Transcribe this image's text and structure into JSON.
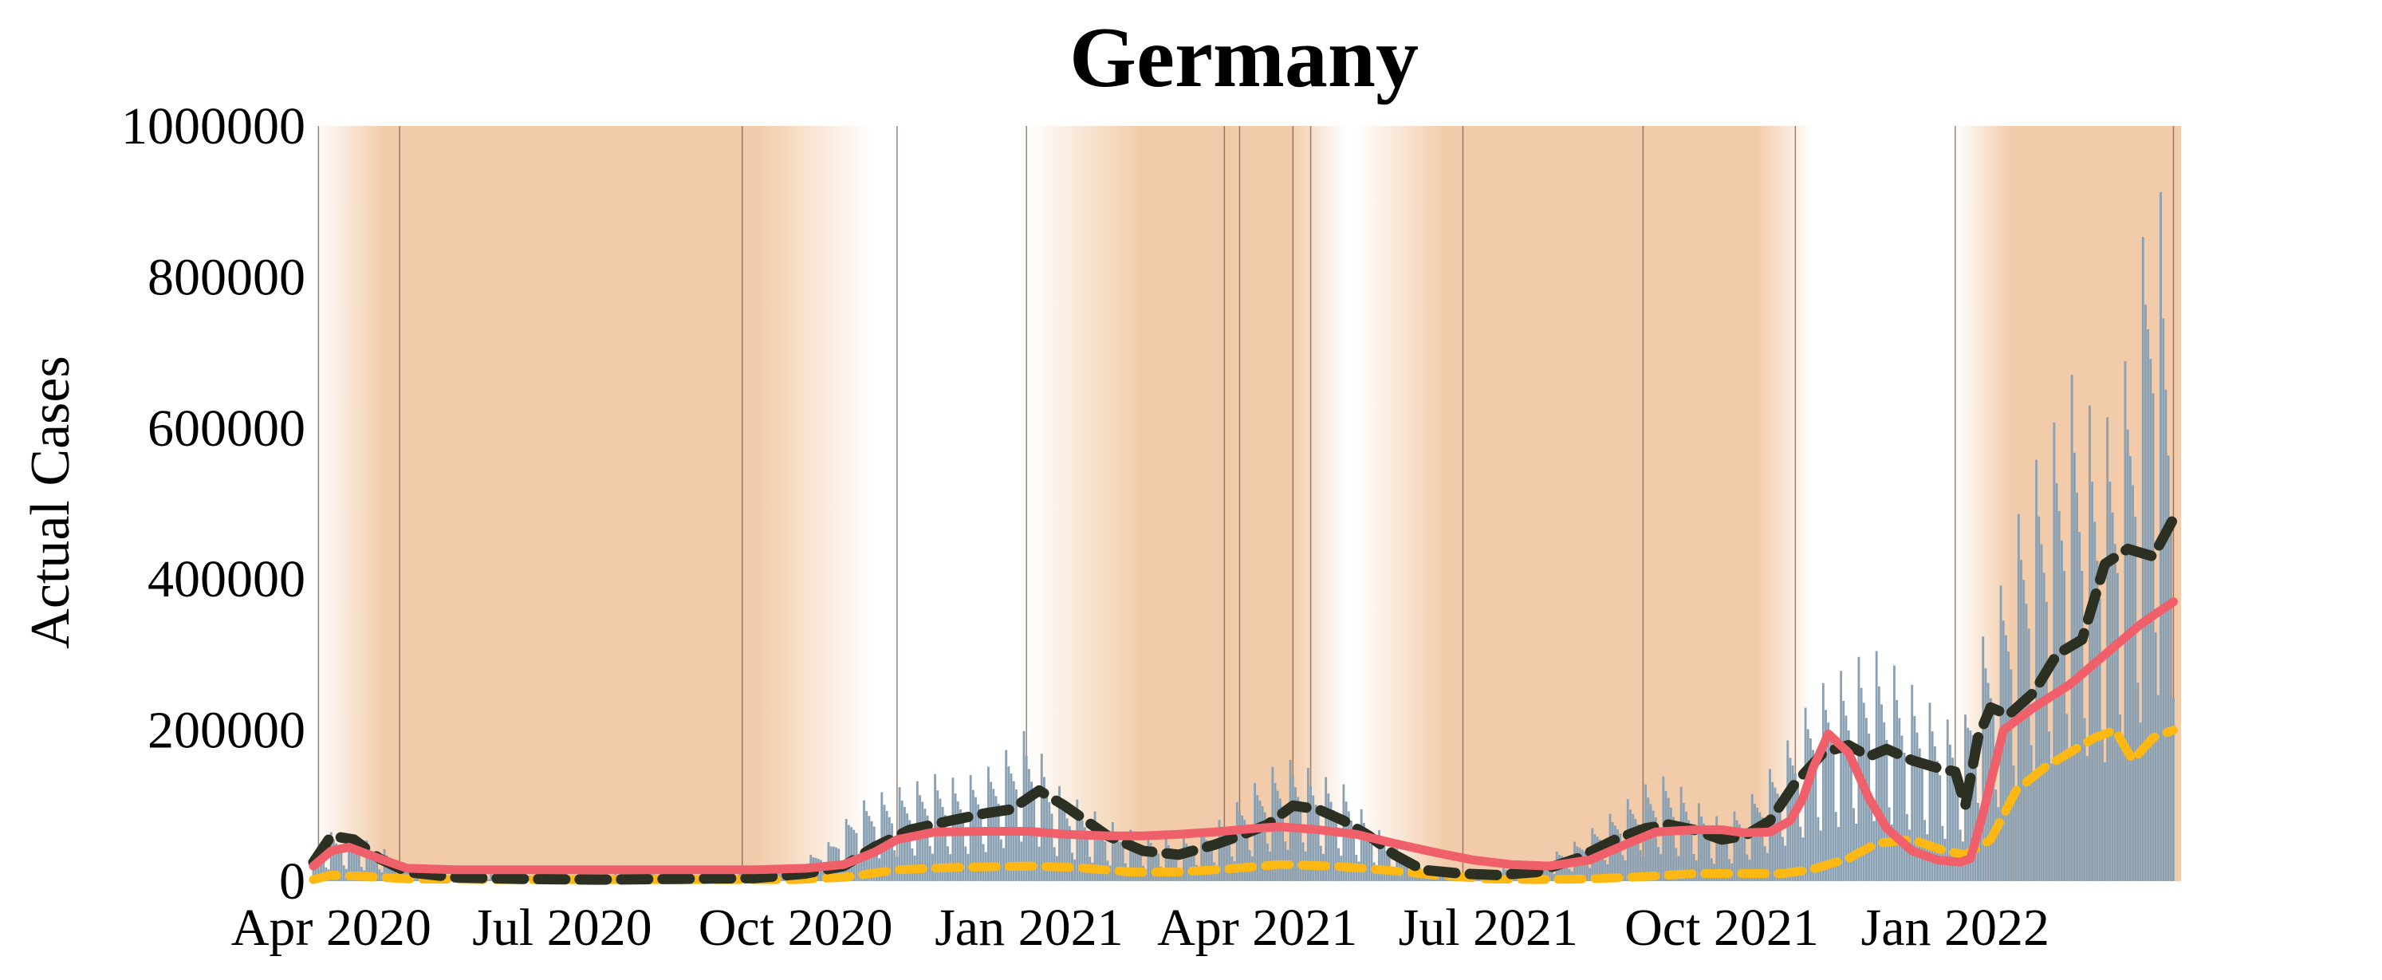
{
  "chart_data": {
    "type": "line",
    "title": "Germany",
    "xlabel": "",
    "ylabel": "Actual Cases",
    "ylim": [
      0,
      1000000
    ],
    "xlim": [
      "2020-03-25",
      "2022-03-31"
    ],
    "yticks": [
      "0",
      "200000",
      "400000",
      "600000",
      "800000",
      "1000000"
    ],
    "xticks": [
      {
        "date": "2020-04-01",
        "label": "Apr 2020"
      },
      {
        "date": "2020-07-01",
        "label": "Jul 2020"
      },
      {
        "date": "2020-10-01",
        "label": "Oct 2020"
      },
      {
        "date": "2021-01-01",
        "label": "Jan 2021"
      },
      {
        "date": "2021-04-01",
        "label": "Apr 2021"
      },
      {
        "date": "2021-07-01",
        "label": "Jul 2021"
      },
      {
        "date": "2021-10-01",
        "label": "Oct 2021"
      },
      {
        "date": "2022-01-01",
        "label": "Jan 2022"
      }
    ],
    "grid": false,
    "legend": "none",
    "colors": {
      "bars": "#8aa1b4",
      "dark_dashed": "#2b3022",
      "red_line": "#f0606b",
      "yellow_dashed": "#fdb813",
      "shading": "#f2ccaa",
      "event_line": "#7a5a45"
    },
    "shaded_periods": [
      {
        "start": "2020-03-25",
        "end": "2020-10-31",
        "fade_in_days": 28,
        "fade_out_days": 45
      },
      {
        "start": "2020-12-31",
        "end": "2021-05-06",
        "fade_in_days": 45,
        "fade_out_days": 22
      },
      {
        "start": "2021-05-10",
        "end": "2021-11-06",
        "fade_in_days": 35,
        "fade_out_days": 22
      },
      {
        "start": "2022-01-01",
        "end": "2022-03-31",
        "fade_in_days": 22,
        "fade_out_days": 0
      }
    ],
    "event_lines": [
      "2020-03-27",
      "2020-04-28",
      "2020-09-10",
      "2020-11-10",
      "2020-12-31",
      "2021-03-19",
      "2021-03-25",
      "2021-04-15",
      "2021-04-22",
      "2021-06-21",
      "2021-08-31",
      "2021-10-30",
      "2022-01-01",
      "2022-03-28"
    ],
    "series": [
      {
        "style": "bars",
        "x": [
          "2020-03-25",
          "2020-04-01",
          "2020-04-10",
          "2020-04-20",
          "2020-05-01",
          "2020-05-20",
          "2020-06-15",
          "2020-07-15",
          "2020-08-15",
          "2020-09-15",
          "2020-10-01",
          "2020-10-15",
          "2020-10-25",
          "2020-11-01",
          "2020-11-15",
          "2020-11-25",
          "2020-12-05",
          "2020-12-15",
          "2020-12-22",
          "2020-12-29",
          "2021-01-05",
          "2021-01-12",
          "2021-01-20",
          "2021-02-01",
          "2021-02-15",
          "2021-03-01",
          "2021-03-15",
          "2021-03-25",
          "2021-04-05",
          "2021-04-15",
          "2021-04-25",
          "2021-05-05",
          "2021-05-15",
          "2021-05-25",
          "2021-06-05",
          "2021-06-20",
          "2021-07-05",
          "2021-07-20",
          "2021-08-05",
          "2021-08-20",
          "2021-09-01",
          "2021-09-10",
          "2021-09-20",
          "2021-10-01",
          "2021-10-10",
          "2021-10-20",
          "2021-10-30",
          "2021-11-05",
          "2021-11-12",
          "2021-11-20",
          "2021-11-28",
          "2021-12-05",
          "2021-12-12",
          "2021-12-20",
          "2021-12-28",
          "2022-01-04",
          "2022-01-10",
          "2022-01-16",
          "2022-01-22",
          "2022-01-28",
          "2022-02-03",
          "2022-02-09",
          "2022-02-15",
          "2022-02-21",
          "2022-02-27",
          "2022-03-05",
          "2022-03-10",
          "2022-03-15",
          "2022-03-20",
          "2022-03-25",
          "2022-03-28"
        ],
        "values": [
          20000,
          48000,
          45000,
          35000,
          15000,
          8000,
          6000,
          7000,
          8000,
          10000,
          15000,
          40000,
          75000,
          85000,
          95000,
          105000,
          100000,
          110000,
          125000,
          150000,
          130000,
          95000,
          80000,
          60000,
          45000,
          40000,
          55000,
          80000,
          110000,
          120000,
          105000,
          95000,
          60000,
          35000,
          15000,
          10000,
          12000,
          18000,
          40000,
          70000,
          95000,
          105000,
          80000,
          60000,
          75000,
          110000,
          150000,
          180000,
          200000,
          210000,
          230000,
          220000,
          200000,
          180000,
          160000,
          150000,
          230000,
          260000,
          320000,
          380000,
          420000,
          450000,
          500000,
          480000,
          440000,
          470000,
          520000,
          600000,
          760000,
          620000,
          540000
        ]
      },
      {
        "style": "dark-dashed",
        "x": [
          "2020-03-25",
          "2020-04-01",
          "2020-04-10",
          "2020-04-20",
          "2020-05-01",
          "2020-05-20",
          "2020-06-15",
          "2020-07-15",
          "2020-08-15",
          "2020-09-15",
          "2020-10-05",
          "2020-10-20",
          "2020-11-01",
          "2020-11-15",
          "2020-12-01",
          "2020-12-15",
          "2020-12-25",
          "2021-01-05",
          "2021-01-15",
          "2021-02-01",
          "2021-02-15",
          "2021-03-01",
          "2021-03-15",
          "2021-03-25",
          "2021-04-05",
          "2021-04-15",
          "2021-04-25",
          "2021-05-05",
          "2021-05-15",
          "2021-05-25",
          "2021-06-05",
          "2021-06-20",
          "2021-07-05",
          "2021-07-20",
          "2021-08-05",
          "2021-08-20",
          "2021-09-01",
          "2021-09-10",
          "2021-09-20",
          "2021-10-01",
          "2021-10-10",
          "2021-10-20",
          "2021-10-30",
          "2021-11-10",
          "2021-11-20",
          "2021-11-28",
          "2021-12-05",
          "2021-12-15",
          "2021-12-25",
          "2022-01-01",
          "2022-01-05",
          "2022-01-10",
          "2022-01-15",
          "2022-01-22",
          "2022-02-01",
          "2022-02-10",
          "2022-02-20",
          "2022-03-01",
          "2022-03-10",
          "2022-03-20",
          "2022-03-28"
        ],
        "values": [
          25000,
          60000,
          55000,
          30000,
          12000,
          5000,
          3000,
          2000,
          3000,
          4000,
          10000,
          20000,
          45000,
          68000,
          80000,
          90000,
          95000,
          120000,
          100000,
          60000,
          40000,
          35000,
          48000,
          60000,
          75000,
          100000,
          95000,
          80000,
          60000,
          35000,
          15000,
          10000,
          8000,
          12000,
          30000,
          55000,
          70000,
          75000,
          68000,
          55000,
          60000,
          80000,
          130000,
          170000,
          180000,
          165000,
          175000,
          160000,
          150000,
          145000,
          100000,
          190000,
          230000,
          220000,
          250000,
          300000,
          320000,
          420000,
          440000,
          430000,
          480000
        ]
      },
      {
        "style": "red-line",
        "x": [
          "2020-03-25",
          "2020-04-01",
          "2020-04-08",
          "2020-04-20",
          "2020-05-01",
          "2020-05-20",
          "2020-06-15",
          "2020-07-15",
          "2020-08-15",
          "2020-09-15",
          "2020-10-05",
          "2020-10-20",
          "2020-11-01",
          "2020-11-10",
          "2020-11-25",
          "2020-12-15",
          "2021-01-01",
          "2021-01-15",
          "2021-02-01",
          "2021-02-15",
          "2021-03-01",
          "2021-03-15",
          "2021-04-01",
          "2021-04-10",
          "2021-04-25",
          "2021-05-10",
          "2021-05-25",
          "2021-06-10",
          "2021-06-25",
          "2021-07-10",
          "2021-07-25",
          "2021-08-10",
          "2021-08-25",
          "2021-09-05",
          "2021-09-20",
          "2021-10-01",
          "2021-10-10",
          "2021-10-20",
          "2021-10-28",
          "2021-11-02",
          "2021-11-06",
          "2021-11-12",
          "2021-11-20",
          "2021-11-28",
          "2021-12-05",
          "2021-12-15",
          "2021-12-25",
          "2022-01-03",
          "2022-01-07",
          "2022-01-12",
          "2022-01-20",
          "2022-02-01",
          "2022-02-15",
          "2022-03-01",
          "2022-03-15",
          "2022-03-28"
        ],
        "values": [
          20000,
          40000,
          45000,
          30000,
          17000,
          15000,
          15000,
          15000,
          15000,
          15000,
          17000,
          22000,
          38000,
          55000,
          65000,
          66000,
          66000,
          62000,
          60000,
          60000,
          62000,
          65000,
          70000,
          72000,
          68000,
          62000,
          50000,
          38000,
          28000,
          22000,
          20000,
          28000,
          50000,
          65000,
          68000,
          68000,
          64000,
          65000,
          80000,
          110000,
          150000,
          195000,
          170000,
          110000,
          70000,
          40000,
          28000,
          25000,
          30000,
          90000,
          200000,
          230000,
          260000,
          300000,
          340000,
          370000
        ]
      },
      {
        "style": "yellow-dashed",
        "x": [
          "2020-03-25",
          "2020-04-01",
          "2020-04-15",
          "2020-05-01",
          "2020-06-01",
          "2020-07-01",
          "2020-08-01",
          "2020-09-01",
          "2020-10-01",
          "2020-10-20",
          "2020-11-10",
          "2020-12-01",
          "2021-01-01",
          "2021-01-20",
          "2021-02-10",
          "2021-03-01",
          "2021-03-20",
          "2021-04-10",
          "2021-05-01",
          "2021-05-20",
          "2021-06-10",
          "2021-07-01",
          "2021-07-20",
          "2021-08-10",
          "2021-09-01",
          "2021-09-20",
          "2021-10-10",
          "2021-10-25",
          "2021-11-05",
          "2021-11-20",
          "2021-12-01",
          "2021-12-15",
          "2021-12-28",
          "2022-01-05",
          "2022-01-15",
          "2022-01-25",
          "2022-02-05",
          "2022-02-15",
          "2022-02-25",
          "2022-03-05",
          "2022-03-12",
          "2022-03-20",
          "2022-03-28"
        ],
        "values": [
          2000,
          8000,
          6000,
          3000,
          2000,
          2000,
          2000,
          2000,
          2000,
          5000,
          15000,
          18000,
          20000,
          18000,
          12000,
          12000,
          16000,
          22000,
          20000,
          15000,
          8000,
          3000,
          2000,
          3000,
          6000,
          10000,
          10000,
          10000,
          15000,
          30000,
          50000,
          55000,
          40000,
          35000,
          55000,
          120000,
          150000,
          170000,
          190000,
          200000,
          160000,
          190000,
          200000
        ]
      }
    ]
  }
}
